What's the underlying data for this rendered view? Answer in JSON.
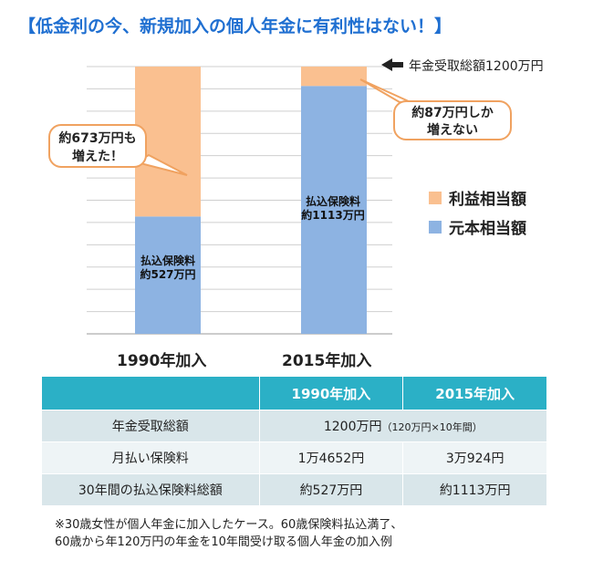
{
  "title": "【低金利の今、新規加入の個人年金に有利性はない！】",
  "chart_data": {
    "type": "bar",
    "stacked": true,
    "categories": [
      "1990年加入",
      "2015年加入"
    ],
    "series": [
      {
        "name": "元本相当額",
        "values": [
          527,
          1113
        ],
        "color": "#8db3e2"
      },
      {
        "name": "利益相当額",
        "values": [
          673,
          87
        ],
        "color": "#fac090"
      }
    ],
    "ylim": [
      0,
      1200
    ],
    "grid": true,
    "title": "",
    "xlabel": "",
    "ylabel": "",
    "legend_position": "right",
    "annotations": {
      "total": "年金受取総額1200万円",
      "left_callout_1": "約673万円も",
      "left_callout_2": "増えた！",
      "right_callout_1": "約87万円しか",
      "right_callout_2": "増えない",
      "bar1_label_1": "払込保険料",
      "bar1_label_2": "約527万円",
      "bar2_label_1": "払込保険料",
      "bar2_label_2": "約1113万円"
    }
  },
  "table": {
    "headers": [
      "",
      "1990年加入",
      "2015年加入"
    ],
    "row1_label": "年金受取総額",
    "row1_value": "1200万円",
    "row1_sub": "（120万円×10年間）",
    "row2_label": "月払い保険料",
    "row2_values": [
      "1万4652円",
      "3万924円"
    ],
    "row3_label": "30年間の払込保険料総額",
    "row3_values": [
      "約527万円",
      "約1113万円"
    ]
  },
  "note": {
    "line1": "※30歳女性が個人年金に加入したケース。60歳保険料払込満了、",
    "line2": "60歳から年120万円の年金を10年間受け取る個人年金の加入例"
  }
}
